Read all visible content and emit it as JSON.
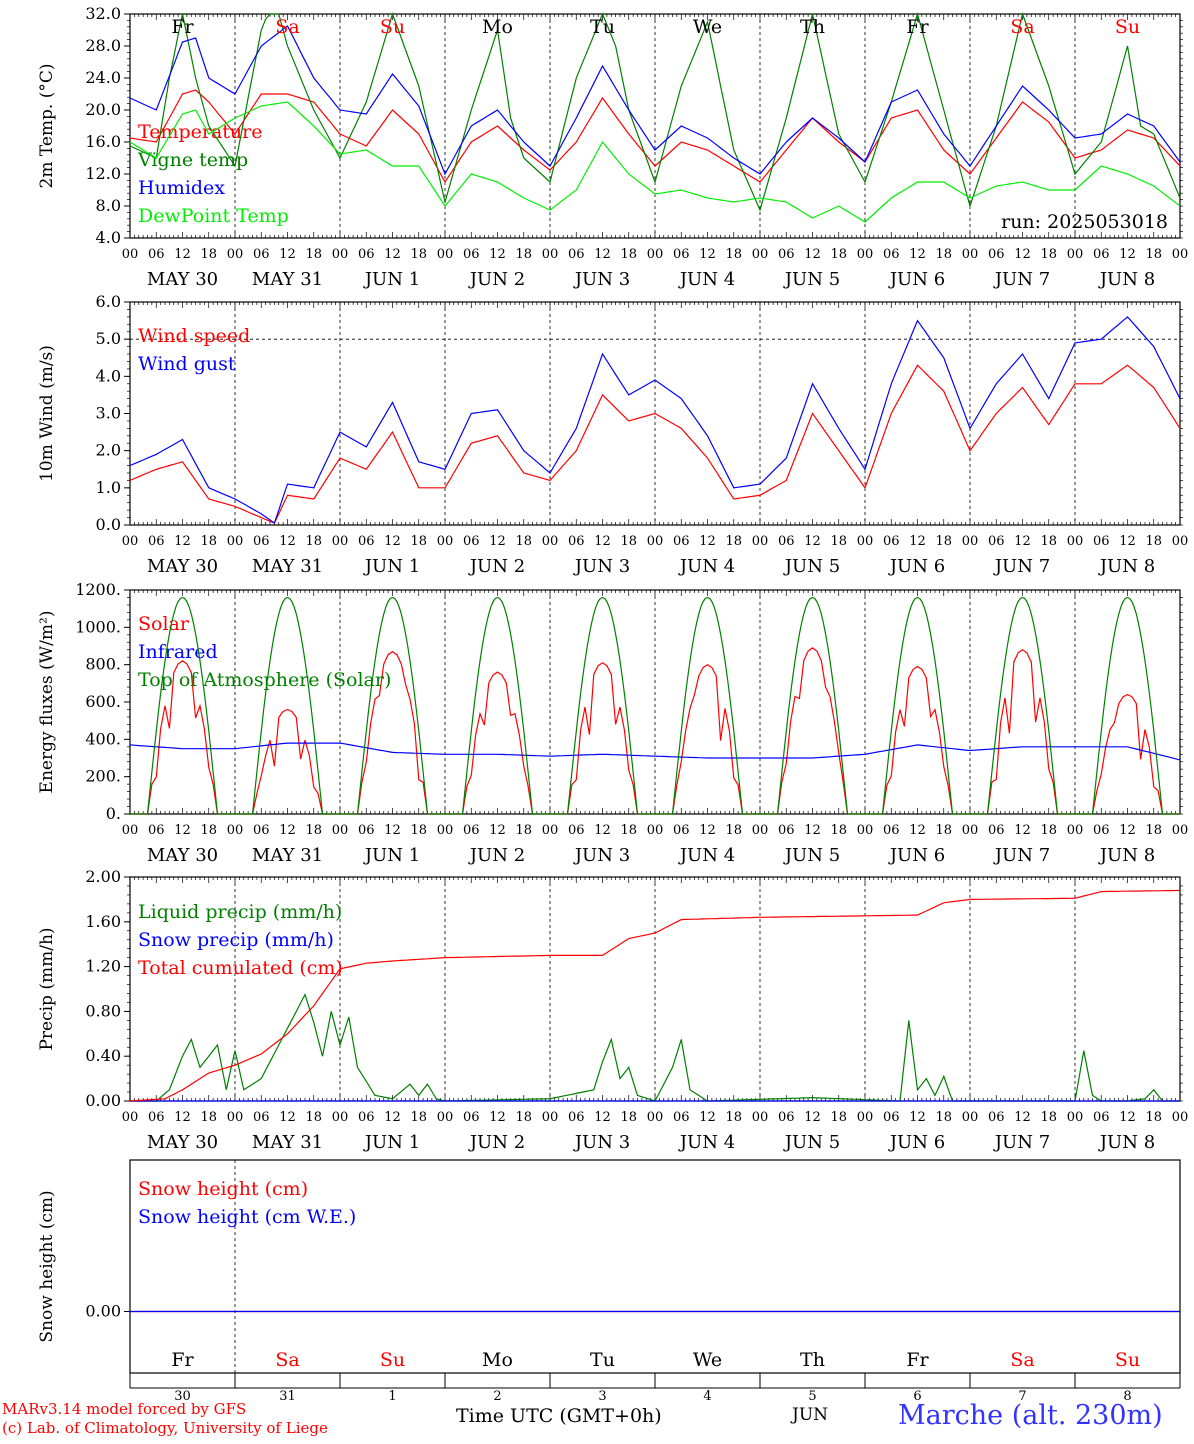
{
  "run_label": "run: 2025053018",
  "location": "Marche (alt. 230m)",
  "credits": [
    "MARv3.14 model forced by GFS",
    "(c) Lab. of Climatology, University of Liege"
  ],
  "xaxis_title": "Time UTC (GMT+0h)",
  "month_label": "JUN",
  "hour_ticks": [
    "00",
    "06",
    "12",
    "18"
  ],
  "date_labels": [
    "MAY 30",
    "MAY 31",
    "JUN  1",
    "JUN  2",
    "JUN  3",
    "JUN  4",
    "JUN  5",
    "JUN  6",
    "JUN  7",
    "JUN  8"
  ],
  "day_numbers": [
    "30",
    "31",
    "1",
    "2",
    "3",
    "4",
    "5",
    "6",
    "7",
    "8"
  ],
  "weekdays": [
    "Fr",
    "Sa",
    "Su",
    "Mo",
    "Tu",
    "We",
    "Th",
    "Fr",
    "Sa",
    "Su"
  ],
  "weekend_flags": [
    false,
    true,
    true,
    false,
    false,
    false,
    false,
    false,
    true,
    true
  ],
  "colors": {
    "red": "#ff0000",
    "darkgreen": "#008000",
    "blue": "#0000ff",
    "lightgreen": "#00ee00",
    "axis": "#000000"
  },
  "chart_data": [
    {
      "type": "line",
      "ylabel": "2m Temp. (°C)",
      "ylim": [
        4.0,
        32.0
      ],
      "yticks": [
        "4.0",
        "8.0",
        "12.0",
        "16.0",
        "20.0",
        "24.0",
        "28.0",
        "32.0"
      ],
      "x_unit": "hours since 2025-05-30 00 UTC",
      "series": [
        {
          "name": "Temperature",
          "color": "red",
          "x": [
            0,
            6,
            12,
            15,
            18,
            24,
            30,
            36,
            42,
            48,
            54,
            60,
            66,
            72,
            78,
            84,
            90,
            96,
            102,
            108,
            114,
            120,
            126,
            132,
            138,
            144,
            150,
            156,
            162,
            168,
            174,
            180,
            186,
            192,
            198,
            204,
            210,
            216,
            222,
            228,
            234,
            240
          ],
          "y": [
            16.5,
            16,
            22,
            22.5,
            21,
            17,
            22,
            22,
            21,
            17,
            15.5,
            20,
            17,
            11,
            16,
            18,
            15,
            12.5,
            16,
            21.5,
            17,
            13,
            16,
            15,
            13,
            11,
            15,
            19,
            16,
            13.5,
            19,
            20,
            15,
            12,
            16.5,
            21,
            18.5,
            14,
            15,
            17.5,
            16.5,
            13
          ]
        },
        {
          "name": "Vigne temp",
          "color": "darkgreen",
          "x": [
            0,
            6,
            9,
            12,
            15,
            18,
            24,
            30,
            33,
            36,
            42,
            48,
            54,
            60,
            66,
            72,
            78,
            84,
            87,
            90,
            96,
            102,
            108,
            111,
            114,
            120,
            126,
            132,
            138,
            144,
            150,
            156,
            162,
            168,
            174,
            180,
            186,
            192,
            198,
            204,
            210,
            216,
            222,
            228,
            231,
            234,
            240
          ],
          "y": [
            15.5,
            14,
            24,
            32,
            24,
            18,
            13,
            30,
            34,
            28,
            20,
            14,
            21,
            32,
            23,
            8.5,
            20,
            30,
            19,
            14,
            11,
            24,
            32,
            28,
            20,
            11,
            23,
            31,
            15,
            7.5,
            19,
            32,
            17,
            11,
            21,
            32,
            20,
            8,
            18,
            32,
            23,
            12,
            16,
            28,
            18,
            17,
            9
          ]
        },
        {
          "name": "Humidex",
          "color": "blue",
          "x": [
            0,
            6,
            12,
            15,
            18,
            24,
            30,
            36,
            42,
            48,
            54,
            60,
            66,
            72,
            78,
            84,
            90,
            96,
            102,
            108,
            114,
            120,
            126,
            132,
            138,
            144,
            150,
            156,
            162,
            168,
            174,
            180,
            186,
            192,
            198,
            204,
            210,
            216,
            222,
            228,
            234,
            240
          ],
          "y": [
            21.5,
            20,
            28.5,
            29,
            24,
            22,
            28,
            30.5,
            24,
            20,
            19.5,
            24.5,
            20.5,
            12,
            18,
            20,
            16,
            13,
            19,
            25.5,
            20,
            15,
            18,
            16.5,
            14,
            12,
            16,
            19,
            16.5,
            13.5,
            21,
            22.5,
            17,
            13,
            18,
            23,
            20,
            16.5,
            17,
            19.5,
            18,
            13.5
          ]
        },
        {
          "name": "DewPoint Temp",
          "color": "lightgreen",
          "x": [
            0,
            6,
            12,
            15,
            18,
            24,
            30,
            36,
            42,
            48,
            54,
            60,
            66,
            72,
            78,
            84,
            90,
            96,
            102,
            108,
            114,
            120,
            126,
            132,
            138,
            144,
            150,
            156,
            162,
            168,
            174,
            180,
            186,
            192,
            198,
            204,
            210,
            216,
            222,
            228,
            234,
            240
          ],
          "y": [
            16,
            14,
            19.5,
            20,
            17,
            19,
            20.5,
            21,
            18,
            14.5,
            15,
            13,
            13,
            8,
            12,
            11,
            9,
            7.5,
            10,
            16,
            12,
            9.5,
            10,
            9,
            8.5,
            9,
            8.5,
            6.5,
            8,
            6,
            9,
            11,
            11,
            9,
            10.5,
            11,
            10,
            10,
            13,
            12,
            10.5,
            8
          ]
        }
      ]
    },
    {
      "type": "line",
      "ylabel": "10m Wind (m/s)",
      "ylim": [
        0.0,
        6.0
      ],
      "yticks": [
        "0.0",
        "1.0",
        "2.0",
        "3.0",
        "4.0",
        "5.0",
        "6.0"
      ],
      "reference_line": 5.0,
      "series": [
        {
          "name": "Wind speed",
          "color": "red",
          "x": [
            0,
            6,
            12,
            18,
            24,
            30,
            33,
            36,
            42,
            48,
            54,
            60,
            66,
            72,
            78,
            84,
            90,
            96,
            102,
            108,
            114,
            120,
            126,
            132,
            138,
            144,
            150,
            156,
            162,
            168,
            174,
            180,
            186,
            192,
            198,
            204,
            210,
            216,
            222,
            228,
            234,
            240
          ],
          "y": [
            1.2,
            1.5,
            1.7,
            0.7,
            0.5,
            0.2,
            0.05,
            0.8,
            0.7,
            1.8,
            1.5,
            2.5,
            1.0,
            1.0,
            2.2,
            2.4,
            1.4,
            1.2,
            2.0,
            3.5,
            2.8,
            3.0,
            2.6,
            1.8,
            0.7,
            0.8,
            1.2,
            3.0,
            2.0,
            1.0,
            3.0,
            4.3,
            3.6,
            2.0,
            3.0,
            3.7,
            2.7,
            3.8,
            3.8,
            4.3,
            3.7,
            2.6
          ]
        },
        {
          "name": "Wind gust",
          "color": "blue",
          "x": [
            0,
            6,
            12,
            18,
            24,
            30,
            33,
            36,
            42,
            48,
            54,
            60,
            66,
            72,
            78,
            84,
            90,
            96,
            102,
            108,
            114,
            120,
            126,
            132,
            138,
            144,
            150,
            156,
            162,
            168,
            174,
            180,
            186,
            192,
            198,
            204,
            210,
            216,
            222,
            228,
            234,
            240
          ],
          "y": [
            1.6,
            1.9,
            2.3,
            1.0,
            0.7,
            0.3,
            0.05,
            1.1,
            1.0,
            2.5,
            2.1,
            3.3,
            1.7,
            1.5,
            3.0,
            3.1,
            2.0,
            1.4,
            2.6,
            4.6,
            3.5,
            3.9,
            3.4,
            2.4,
            1.0,
            1.1,
            1.8,
            3.8,
            2.6,
            1.5,
            3.8,
            5.5,
            4.5,
            2.6,
            3.8,
            4.6,
            3.4,
            4.9,
            5.0,
            5.6,
            4.8,
            3.4
          ]
        }
      ]
    },
    {
      "type": "line",
      "ylabel": "Energy fluxes (W/m²)",
      "ylim": [
        0,
        1200
      ],
      "yticks": [
        "0.",
        "200.",
        "400.",
        "600.",
        "800.",
        "1000.",
        "1200."
      ],
      "series": [
        {
          "name": "Solar",
          "color": "red",
          "peaks": [
            820,
            560,
            870,
            760,
            810,
            800,
            890,
            790,
            880,
            640
          ]
        },
        {
          "name": "Infrared",
          "color": "blue",
          "x": [
            0,
            12,
            24,
            36,
            48,
            60,
            72,
            84,
            96,
            108,
            120,
            132,
            144,
            156,
            168,
            180,
            192,
            204,
            216,
            228,
            240
          ],
          "y": [
            370,
            350,
            350,
            380,
            380,
            330,
            320,
            320,
            310,
            320,
            310,
            300,
            300,
            300,
            320,
            370,
            340,
            360,
            360,
            360,
            290
          ]
        },
        {
          "name": "Top of Atmosphere (Solar)",
          "color": "darkgreen",
          "peak": 1160,
          "sunrise_h": 4,
          "sunset_h": 20
        }
      ]
    },
    {
      "type": "line",
      "ylabel": "Precip (mm/h)",
      "ylim": [
        0.0,
        2.0
      ],
      "yticks": [
        "0.00",
        "0.40",
        "0.80",
        "1.20",
        "1.60",
        "2.00"
      ],
      "series": [
        {
          "name": "Liquid precip (mm/h)",
          "color": "darkgreen",
          "x": [
            0,
            6,
            9,
            12,
            14,
            16,
            20,
            22,
            24,
            26,
            30,
            34,
            38,
            40,
            42,
            44,
            46,
            48,
            50,
            52,
            56,
            60,
            64,
            66,
            68,
            70,
            72,
            96,
            106,
            108,
            110,
            112,
            114,
            116,
            120,
            124,
            126,
            128,
            132,
            156,
            176,
            178,
            180,
            182,
            184,
            186,
            188,
            192,
            216,
            218,
            220,
            222,
            224,
            228,
            232,
            234,
            236,
            240
          ],
          "y": [
            0,
            0,
            0.1,
            0.4,
            0.55,
            0.3,
            0.5,
            0.1,
            0.45,
            0.1,
            0.2,
            0.5,
            0.8,
            0.95,
            0.7,
            0.4,
            0.8,
            0.5,
            0.75,
            0.3,
            0.05,
            0.02,
            0.15,
            0.05,
            0.15,
            0.02,
            0,
            0.02,
            0.1,
            0.35,
            0.55,
            0.2,
            0.3,
            0.05,
            0,
            0.3,
            0.55,
            0.1,
            0,
            0.03,
            0,
            0.72,
            0.1,
            0.2,
            0.05,
            0.22,
            0,
            0,
            0,
            0.45,
            0.05,
            0,
            0,
            0,
            0.02,
            0.1,
            0,
            0
          ]
        },
        {
          "name": "Snow precip (mm/h)",
          "color": "blue",
          "constant": 0.0
        },
        {
          "name": "Total cumulated (cm)",
          "color": "red",
          "x": [
            0,
            8,
            12,
            18,
            24,
            30,
            36,
            42,
            48,
            54,
            60,
            72,
            96,
            108,
            114,
            120,
            126,
            144,
            180,
            186,
            192,
            216,
            222,
            240
          ],
          "y": [
            0,
            0.02,
            0.1,
            0.25,
            0.32,
            0.42,
            0.6,
            0.85,
            1.18,
            1.23,
            1.25,
            1.28,
            1.3,
            1.3,
            1.45,
            1.5,
            1.62,
            1.64,
            1.66,
            1.77,
            1.8,
            1.81,
            1.87,
            1.88
          ]
        }
      ]
    },
    {
      "type": "line",
      "ylabel": "Snow height (cm)",
      "yticks": [
        "0.00"
      ],
      "series": [
        {
          "name": "Snow height (cm)",
          "color": "red",
          "constant": 0.0
        },
        {
          "name": "Snow height (cm W.E.)",
          "color": "blue",
          "constant": 0.0
        }
      ]
    }
  ]
}
